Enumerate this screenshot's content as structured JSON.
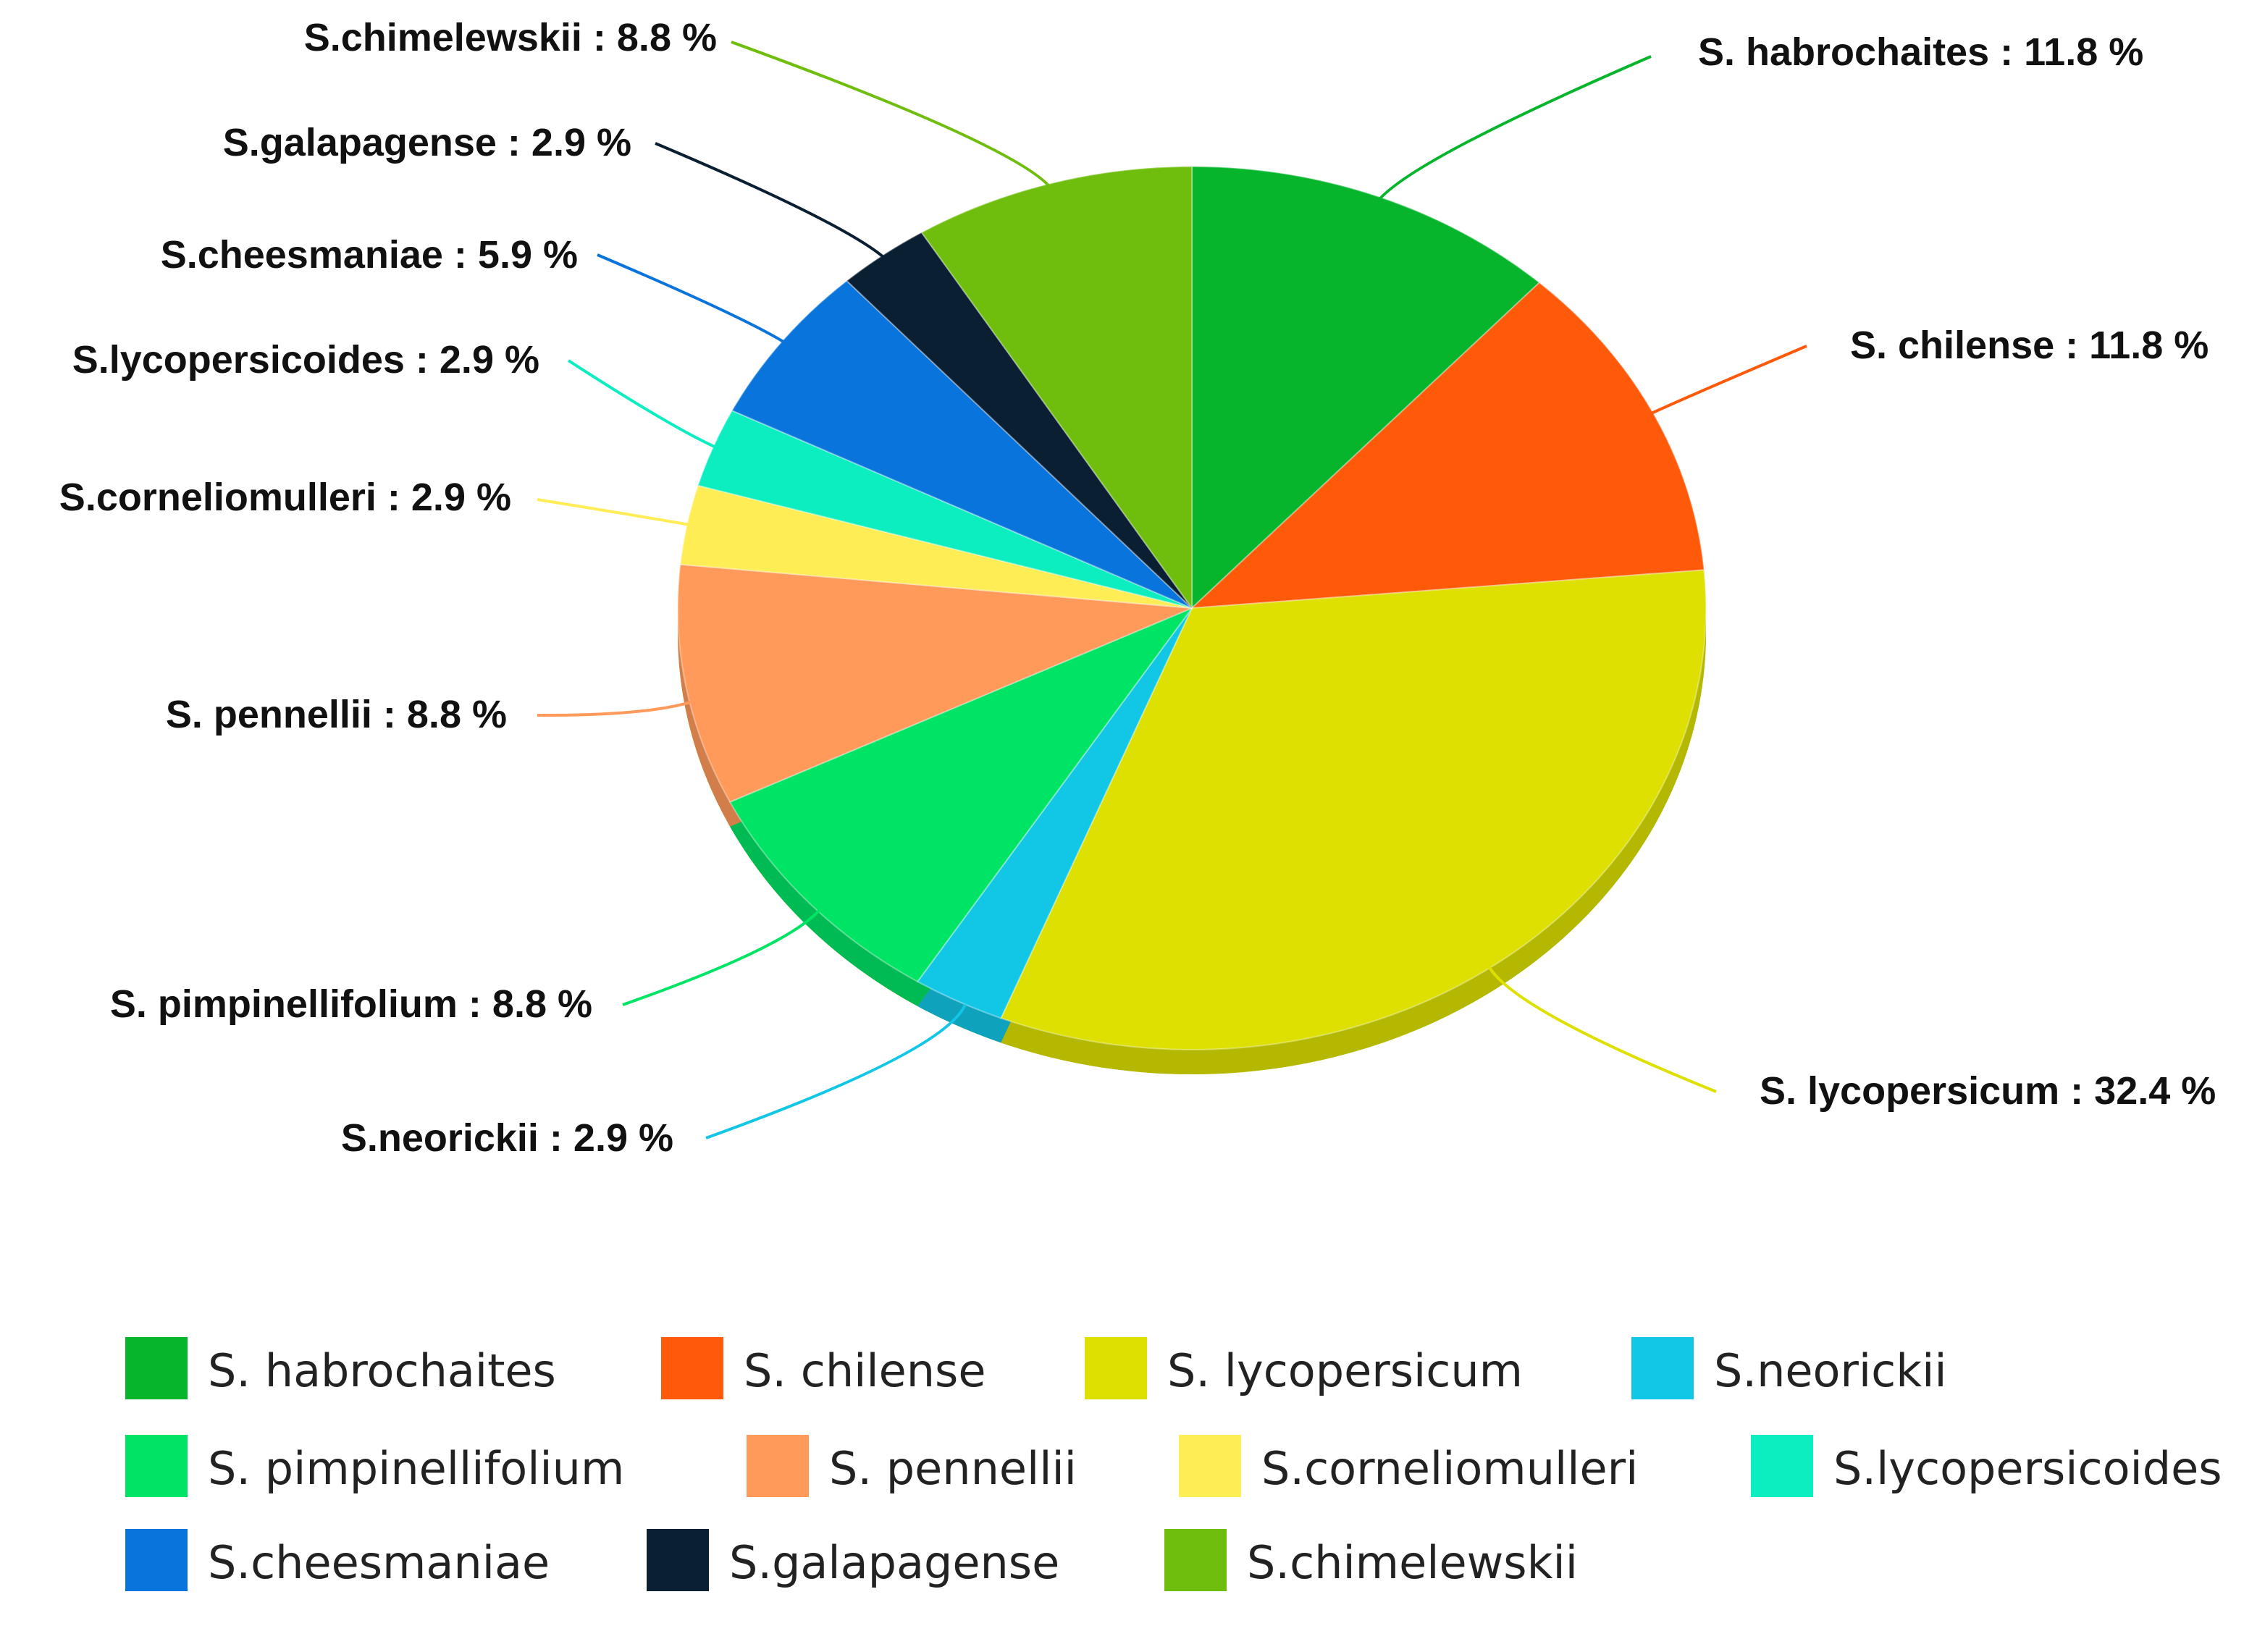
{
  "chart_data": {
    "type": "pie",
    "title": "",
    "legend_placement": "bottom",
    "slices": [
      {
        "name": "S. habrochaites",
        "label": "S. habrochaites : 11.8 %",
        "value": 11.8,
        "color": "#07b52c"
      },
      {
        "name": "S. chilense",
        "label": "S. chilense : 11.8 %",
        "value": 11.8,
        "color": "#ff5a0a"
      },
      {
        "name": "S. lycopersicum",
        "label": "S. lycopersicum : 32.4 %",
        "value": 32.4,
        "color": "#dde000"
      },
      {
        "name": "S.neorickii",
        "label": "S.neorickii : 2.9 %",
        "value": 2.9,
        "color": "#12c6e6"
      },
      {
        "name": "S. pimpinellifolium",
        "label": "S. pimpinellifolium : 8.8 %",
        "value": 8.8,
        "color": "#00e466"
      },
      {
        "name": "S. pennellii",
        "label": "S. pennellii : 8.8 %",
        "value": 8.8,
        "color": "#ff9a5a"
      },
      {
        "name": "S.corneliomulleri",
        "label": "S.corneliomulleri : 2.9 %",
        "value": 2.9,
        "color": "#ffed55"
      },
      {
        "name": "S.lycopersicoides",
        "label": "S.lycopersicoides : 2.9 %",
        "value": 2.9,
        "color": "#0ceec0"
      },
      {
        "name": "S.cheesmaniae",
        "label": "S.cheesmaniae : 5.9 %",
        "value": 5.9,
        "color": "#0a74dd"
      },
      {
        "name": "S.galapagense",
        "label": "S.galapagense : 2.9 %",
        "value": 2.9,
        "color": "#0b1f33"
      },
      {
        "name": "S.chimelewskii",
        "label": "S.chimelewskii : 8.8 %",
        "value": 8.8,
        "color": "#6fbd0c"
      }
    ]
  }
}
